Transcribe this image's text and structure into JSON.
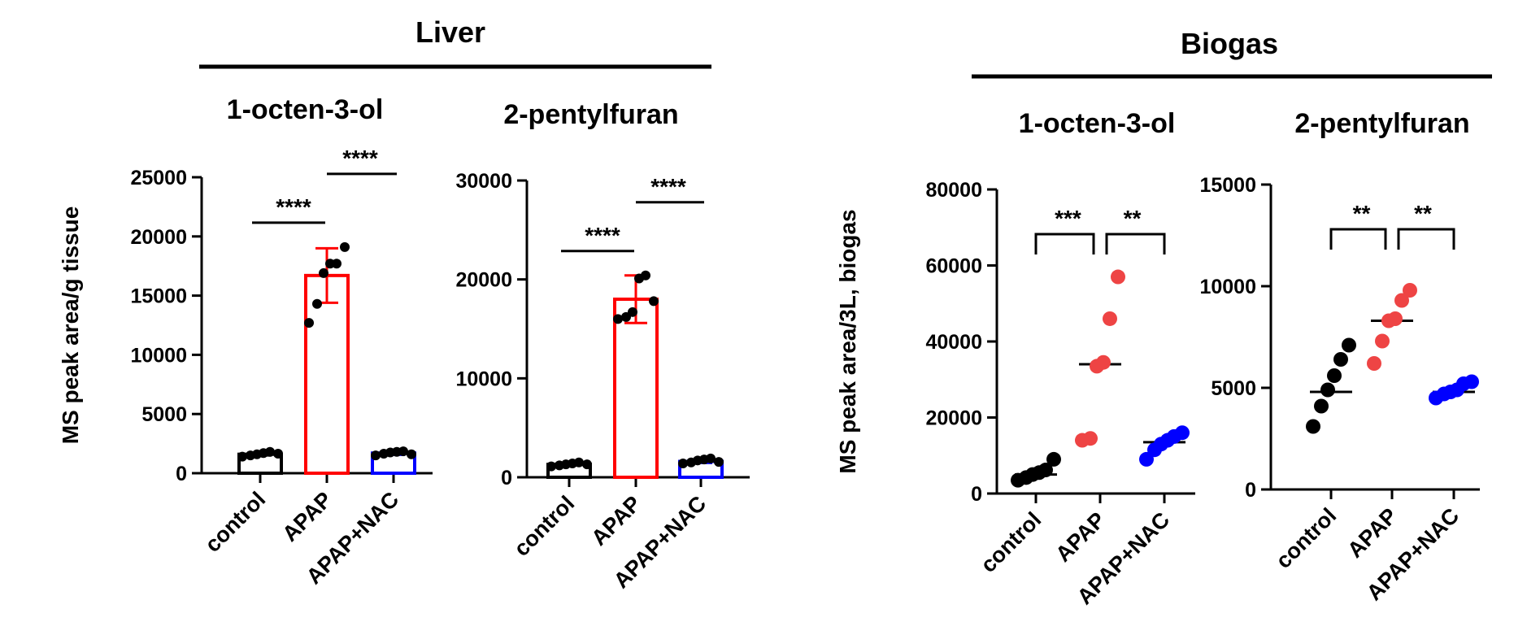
{
  "figure": {
    "liver_header": "Liver",
    "biogas_header": "Biogas"
  },
  "chart_data": [
    {
      "id": "liver-octenol",
      "type": "bar",
      "title": "1-octen-3-ol",
      "ylabel": "MS peak area/g tissue",
      "xlabel": "",
      "categories": [
        "control",
        "APAP",
        "APAP+NAC"
      ],
      "colors": [
        "#000000",
        "#ff0000",
        "#0000ff"
      ],
      "ylim": [
        0,
        25000
      ],
      "yticks": [
        0,
        5000,
        10000,
        15000,
        20000,
        25000
      ],
      "yticklabels": [
        "0",
        "5000",
        "10000",
        "15000",
        "20000",
        "25000"
      ],
      "values": [
        1600,
        16700,
        1700
      ],
      "errors": [
        100,
        2300,
        150
      ],
      "points": [
        [
          1400,
          1500,
          1600,
          1700,
          1800,
          1650
        ],
        [
          12700,
          14300,
          16900,
          17700,
          17700,
          19100
        ],
        [
          1500,
          1650,
          1750,
          1800,
          1850,
          1600
        ]
      ],
      "significance": [
        {
          "from": 0,
          "to": 1,
          "label": "****"
        },
        {
          "from": 1,
          "to": 2,
          "label": "****"
        }
      ]
    },
    {
      "id": "liver-pentylfuran",
      "type": "bar",
      "title": "2-pentylfuran",
      "ylabel": "",
      "xlabel": "",
      "categories": [
        "control",
        "APAP",
        "APAP+NAC"
      ],
      "colors": [
        "#000000",
        "#ff0000",
        "#0000ff"
      ],
      "ylim": [
        0,
        30000
      ],
      "yticks": [
        0,
        10000,
        20000,
        30000
      ],
      "yticklabels": [
        "0",
        "10000",
        "20000",
        "30000"
      ],
      "values": [
        1300,
        18000,
        1600
      ],
      "errors": [
        100,
        2400,
        150
      ],
      "points": [
        [
          1100,
          1200,
          1300,
          1400,
          1500,
          1300
        ],
        [
          16000,
          16200,
          16700,
          20100,
          20400,
          17800
        ],
        [
          1400,
          1500,
          1700,
          1800,
          1900,
          1550
        ]
      ],
      "significance": [
        {
          "from": 0,
          "to": 1,
          "label": "****"
        },
        {
          "from": 1,
          "to": 2,
          "label": "****"
        }
      ]
    },
    {
      "id": "biogas-octenol",
      "type": "scatter",
      "title": "1-octen-3-ol",
      "ylabel": "MS peak area/3L, biogas",
      "xlabel": "",
      "categories": [
        "control",
        "APAP",
        "APAP+NAC"
      ],
      "colors": [
        "#000000",
        "#ee4444",
        "#0000ff"
      ],
      "ylim": [
        0,
        80000
      ],
      "yticks": [
        0,
        20000,
        40000,
        60000,
        80000
      ],
      "yticklabels": [
        "0",
        "20000",
        "40000",
        "60000",
        "80000"
      ],
      "medians": [
        5000,
        34000,
        13500
      ],
      "points": [
        [
          3500,
          4200,
          5000,
          5500,
          6200,
          9000
        ],
        [
          14000,
          14500,
          33500,
          34500,
          46000,
          57000
        ],
        [
          9000,
          11500,
          13000,
          14000,
          15000,
          16000
        ]
      ],
      "significance": [
        {
          "from": 0,
          "to": 1,
          "label": "***"
        },
        {
          "from": 1,
          "to": 2,
          "label": "**"
        }
      ]
    },
    {
      "id": "biogas-pentylfuran",
      "type": "scatter",
      "title": "2-pentylfuran",
      "ylabel": "",
      "xlabel": "",
      "categories": [
        "control",
        "APAP",
        "APAP+NAC"
      ],
      "colors": [
        "#000000",
        "#ee4444",
        "#0000ff"
      ],
      "ylim": [
        0,
        15000
      ],
      "yticks": [
        0,
        5000,
        10000,
        15000
      ],
      "yticklabels": [
        "0",
        "5000",
        "10000",
        "15000"
      ],
      "medians": [
        4800,
        8300,
        4800
      ],
      "points": [
        [
          3100,
          4100,
          4900,
          5600,
          6400,
          7100
        ],
        [
          6200,
          7300,
          8300,
          8400,
          9300,
          9800
        ],
        [
          4500,
          4700,
          4800,
          4900,
          5200,
          5300
        ]
      ],
      "significance": [
        {
          "from": 0,
          "to": 1,
          "label": "**"
        },
        {
          "from": 1,
          "to": 2,
          "label": "**"
        }
      ]
    }
  ]
}
